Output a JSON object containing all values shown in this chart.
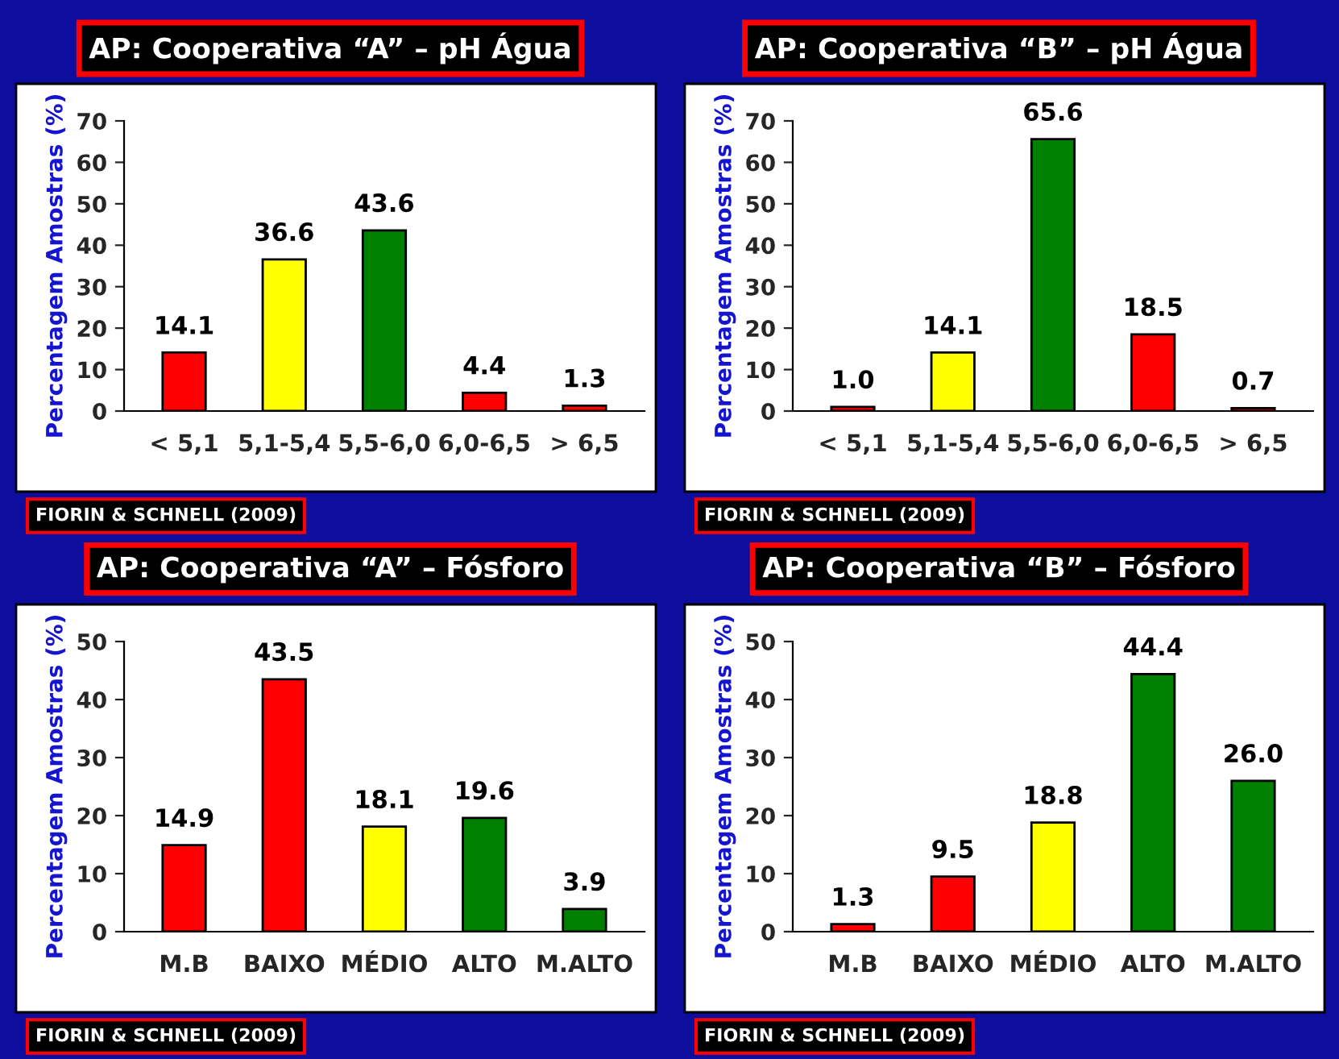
{
  "chart_data": [
    {
      "type": "bar",
      "title": "AP: Cooperativa “A” – pH Água",
      "ylabel": "Percentagem Amostras (%)",
      "categories": [
        "< 5,1",
        "5,1-5,4",
        "5,5-6,0",
        "6,0-6,5",
        "> 6,5"
      ],
      "values": [
        14.1,
        36.6,
        43.6,
        4.4,
        1.3
      ],
      "value_labels": [
        "14.1",
        "36.6",
        "43.6",
        "4.4",
        "1.3"
      ],
      "colors": [
        "#ff0000",
        "#ffff00",
        "#008000",
        "#ff0000",
        "#ff0000"
      ],
      "ylim": [
        0,
        70
      ],
      "yticks": [
        0,
        10,
        20,
        30,
        40,
        50,
        60,
        70
      ],
      "annotations": [
        "FIORIN & SCHNELL (2009)"
      ]
    },
    {
      "type": "bar",
      "title": "AP: Cooperativa “B” – pH Água",
      "ylabel": "Percentagem Amostras (%)",
      "categories": [
        "< 5,1",
        "5,1-5,4",
        "5,5-6,0",
        "6,0-6,5",
        "> 6,5"
      ],
      "values": [
        1.0,
        14.1,
        65.6,
        18.5,
        0.7
      ],
      "value_labels": [
        "1.0",
        "14.1",
        "65.6",
        "18.5",
        "0.7"
      ],
      "colors": [
        "#ff0000",
        "#ffff00",
        "#008000",
        "#ff0000",
        "#ff0000"
      ],
      "ylim": [
        0,
        70
      ],
      "yticks": [
        0,
        10,
        20,
        30,
        40,
        50,
        60,
        70
      ],
      "annotations": [
        "FIORIN & SCHNELL (2009)"
      ]
    },
    {
      "type": "bar",
      "title": "AP: Cooperativa “A” – Fósforo",
      "ylabel": "Percentagem Amostras (%)",
      "categories": [
        "M.B",
        "BAIXO",
        "MÉDIO",
        "ALTO",
        "M.ALTO"
      ],
      "values": [
        14.9,
        43.5,
        18.1,
        19.6,
        3.9
      ],
      "value_labels": [
        "14.9",
        "43.5",
        "18.1",
        "19.6",
        "3.9"
      ],
      "colors": [
        "#ff0000",
        "#ff0000",
        "#ffff00",
        "#008000",
        "#008000"
      ],
      "ylim": [
        0,
        50
      ],
      "yticks": [
        0,
        10,
        20,
        30,
        40,
        50
      ],
      "annotations": [
        "FIORIN & SCHNELL (2009)"
      ]
    },
    {
      "type": "bar",
      "title": "AP: Cooperativa “B” – Fósforo",
      "ylabel": "Percentagem Amostras (%)",
      "categories": [
        "M.B",
        "BAIXO",
        "MÉDIO",
        "ALTO",
        "M.ALTO"
      ],
      "values": [
        1.3,
        9.5,
        18.8,
        44.4,
        26.0
      ],
      "value_labels": [
        "1.3",
        "9.5",
        "18.8",
        "44.4",
        "26.0"
      ],
      "colors": [
        "#ff0000",
        "#ff0000",
        "#ffff00",
        "#008000",
        "#008000"
      ],
      "ylim": [
        0,
        50
      ],
      "yticks": [
        0,
        10,
        20,
        30,
        40,
        50
      ],
      "annotations": [
        "FIORIN & SCHNELL (2009)"
      ]
    }
  ]
}
